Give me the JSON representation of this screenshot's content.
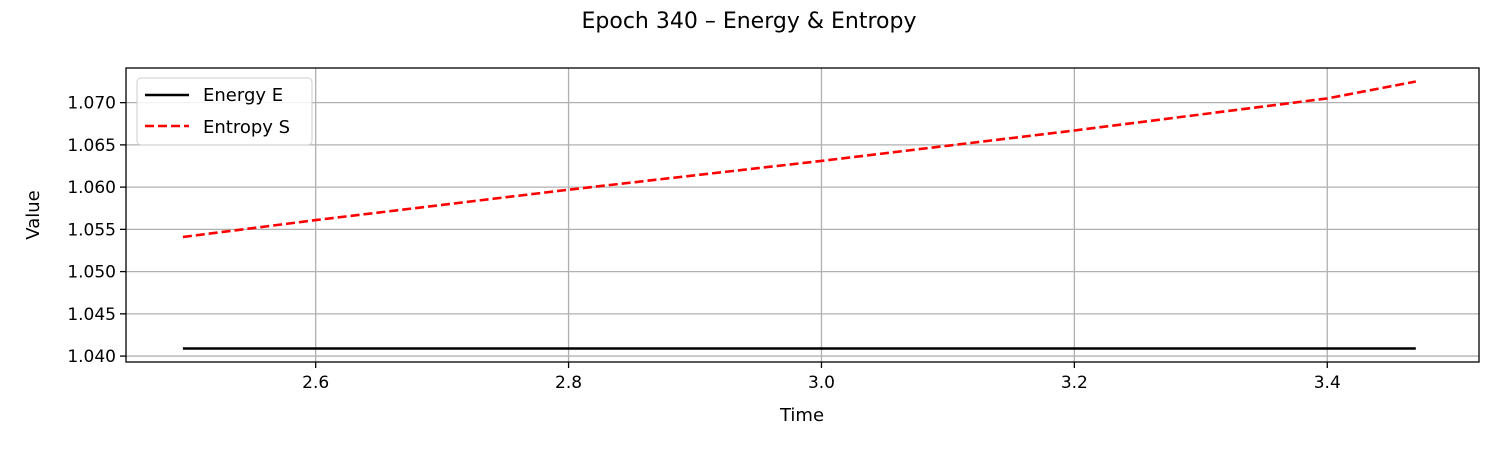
{
  "chart_data": {
    "type": "line",
    "title": "Epoch 340 – Energy & Entropy",
    "xlabel": "Time",
    "ylabel": "Value",
    "xlim": [
      2.45,
      3.52
    ],
    "ylim": [
      1.0393,
      1.0741
    ],
    "xticks": [
      2.6,
      2.8,
      3.0,
      3.2,
      3.4
    ],
    "xtick_labels": [
      "2.6",
      "2.8",
      "3.0",
      "3.2",
      "3.4"
    ],
    "yticks": [
      1.04,
      1.045,
      1.05,
      1.055,
      1.06,
      1.065,
      1.07
    ],
    "ytick_labels": [
      "1.040",
      "1.045",
      "1.050",
      "1.055",
      "1.060",
      "1.065",
      "1.070"
    ],
    "grid": true,
    "legend_position": "top-left",
    "series": [
      {
        "name": "Energy E",
        "color": "#000000",
        "style": "solid",
        "x": [
          2.495,
          3.47
        ],
        "y": [
          1.0409,
          1.0409
        ]
      },
      {
        "name": "Entropy S",
        "color": "#ff0000",
        "style": "dashed",
        "x": [
          2.495,
          2.6,
          2.8,
          3.0,
          3.2,
          3.4,
          3.47
        ],
        "y": [
          1.0541,
          1.0561,
          1.0597,
          1.0631,
          1.0667,
          1.0705,
          1.0725
        ]
      }
    ]
  }
}
